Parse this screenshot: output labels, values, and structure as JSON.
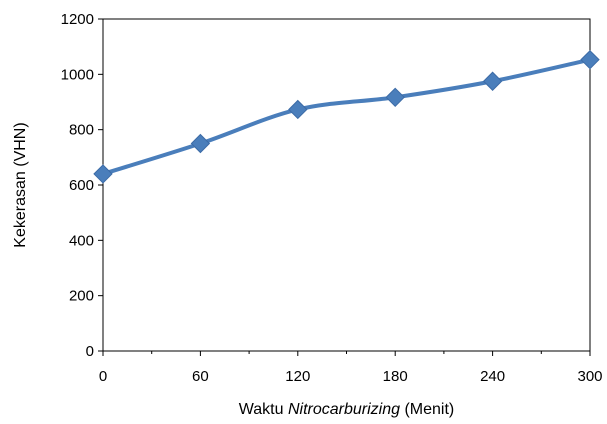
{
  "chart_data": {
    "type": "line",
    "title": "",
    "xlabel_parts": [
      "Waktu ",
      "Nitrocarburizing",
      " (Menit)"
    ],
    "ylabel": "Kekerasan (VHN)",
    "x": [
      0,
      60,
      120,
      180,
      240,
      300
    ],
    "series": [
      {
        "values": [
          640,
          750,
          873,
          917,
          975,
          1053
        ]
      }
    ],
    "xlim": [
      0,
      300
    ],
    "ylim": [
      0,
      1200
    ],
    "x_ticks": [
      0,
      60,
      120,
      180,
      240,
      300
    ],
    "y_ticks": [
      0,
      200,
      400,
      600,
      800,
      1000,
      1200
    ],
    "grid": false,
    "legend": "none",
    "colors": {
      "line": "#4a7ebb",
      "marker": "#4a7ebb",
      "axis": "#000000"
    },
    "marker": "diamond"
  }
}
